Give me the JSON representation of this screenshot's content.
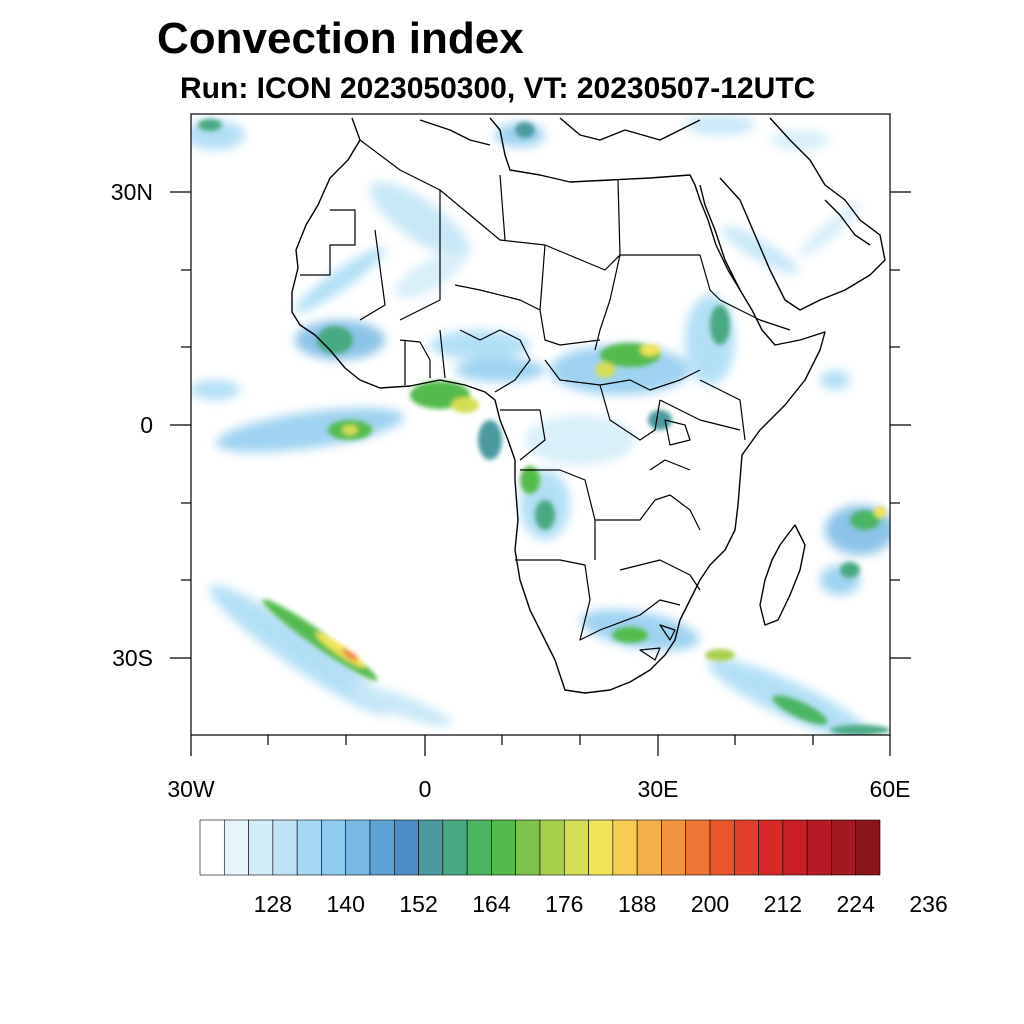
{
  "title": "Convection index",
  "subtitle": "Run: ICON 2023050300,  VT: 20230507-12UTC",
  "axes": {
    "x_labels": [
      "30W",
      "0",
      "30E",
      "60E"
    ],
    "y_labels": [
      "30N",
      "0",
      "30S"
    ]
  },
  "map": {
    "region": "Africa",
    "lon_range": [
      -30,
      60
    ],
    "lat_range": [
      -40,
      40
    ],
    "field": "Convection index",
    "features": [
      "coastlines",
      "country borders"
    ],
    "high_value_areas": [
      "Gulf of Guinea coast",
      "Central African Republic / South Sudan border",
      "Ethiopian highlands",
      "Eastern South Africa",
      "South Atlantic frontal band",
      "Madagascar east / Indian Ocean"
    ]
  },
  "colorbar": {
    "labels": [
      "128",
      "140",
      "152",
      "164",
      "176",
      "188",
      "200",
      "212",
      "224",
      "236"
    ],
    "colors": [
      "#ffffff",
      "#e8f4fb",
      "#d2ecf8",
      "#bfe4f6",
      "#a6daf4",
      "#8ecbef",
      "#78b9e4",
      "#5ea3d6",
      "#4d8ec6",
      "#4c9aa0",
      "#49a982",
      "#4bb562",
      "#52bb4b",
      "#7dc24a",
      "#a8cf4c",
      "#d4de55",
      "#f0e358",
      "#f6cc52",
      "#f4b04a",
      "#f39440",
      "#ef7535",
      "#e8562c",
      "#e03f29",
      "#d72a27",
      "#c81f26",
      "#b61a24",
      "#a01820",
      "#8a151b"
    ]
  }
}
